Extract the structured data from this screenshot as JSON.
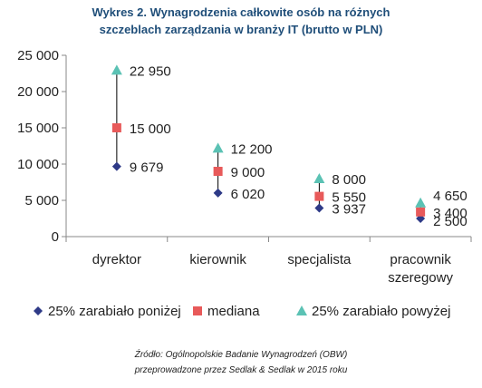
{
  "title_line1": "Wykres 2. Wynagrodzenia całkowite osób na różnych",
  "title_line2": "szczeblach zarządzania w branży IT (brutto w PLN)",
  "source_line1": "Źródło: Ogólnopolskie Badanie Wynagrodzeń (OBW)",
  "source_line2": "przeprowadzone przez Sedlak & Sedlak w 2015 roku",
  "colors": {
    "title": "#1F4E79",
    "low": "#2E3A87",
    "median": "#E85A5A",
    "high": "#5BC2B4",
    "axis": "#888888",
    "line": "#000000",
    "text": "#222222"
  },
  "chart_data": {
    "type": "scatter",
    "title": "Wykres 2. Wynagrodzenia całkowite osób na różnych szczeblach zarządzania w branży IT (brutto w PLN)",
    "categories": [
      "dyrektor",
      "kierownik",
      "specjalista",
      "pracownik szeregowy"
    ],
    "category_lines": [
      [
        "dyrektor"
      ],
      [
        "kierownik"
      ],
      [
        "specjalista"
      ],
      [
        "pracownik",
        "szeregowy"
      ]
    ],
    "series": [
      {
        "name": "25% zarabiało poniżej",
        "marker": "diamond",
        "values": [
          9679,
          6020,
          3937,
          2500
        ],
        "labels": [
          "9 679",
          "6 020",
          "3 937",
          "2 500"
        ]
      },
      {
        "name": "mediana",
        "marker": "square",
        "values": [
          15000,
          9000,
          5550,
          3400
        ],
        "labels": [
          "15 000",
          "9 000",
          "5 550",
          "3 400"
        ]
      },
      {
        "name": "25% zarabiało powyżej",
        "marker": "triangle",
        "values": [
          22950,
          12200,
          8000,
          4650
        ],
        "labels": [
          "22 950",
          "12 200",
          "8 000",
          "4 650"
        ]
      }
    ],
    "ylim": [
      0,
      25000
    ],
    "yticks": [
      0,
      5000,
      10000,
      15000,
      20000,
      25000
    ],
    "ytick_labels": [
      "0",
      "5 000",
      "10 000",
      "15 000",
      "20 000",
      "25 000"
    ],
    "grid": false,
    "legend_position": "bottom"
  }
}
